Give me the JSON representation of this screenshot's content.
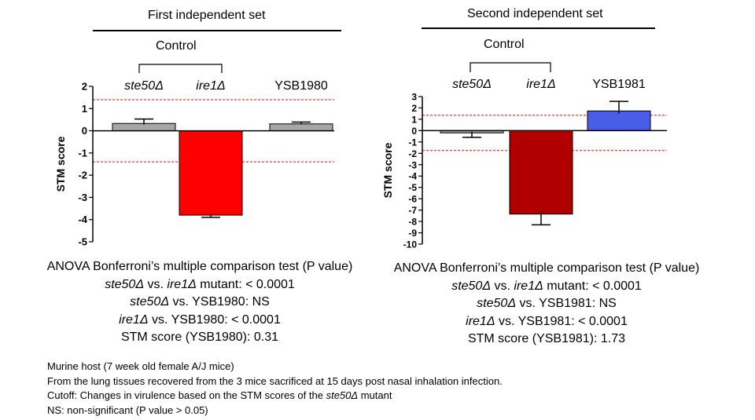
{
  "panels": [
    {
      "heading": "First independent set",
      "control_label": "Control",
      "stats": {
        "title": "ANOVA Bonferroni’s multiple comparison test (P value)",
        "line1_a": "ste50Δ",
        "line1_b": " vs. ",
        "line1_c": "ire1Δ",
        "line1_d": " mutant: < 0.0001",
        "line2_a": "ste50Δ",
        "line2_b": " vs. YSB1980: NS",
        "line3_a": "ire1Δ",
        "line3_b": " vs. YSB1980: < 0.0001",
        "line4": "STM score (YSB1980): 0.31"
      }
    },
    {
      "heading": "Second independent set",
      "control_label": "Control",
      "stats": {
        "title": "ANOVA Bonferroni’s multiple comparison test (P value)",
        "line1_a": "ste50Δ",
        "line1_b": " vs. ",
        "line1_c": "ire1Δ",
        "line1_d": " mutant: < 0.0001",
        "line2_a": "ste50Δ",
        "line2_b": " vs. YSB1981: NS",
        "line3_a": "ire1Δ",
        "line3_b": " vs. YSB1981: < 0.0001",
        "line4": "STM score (YSB1981): 1.73"
      }
    }
  ],
  "chart_data": [
    {
      "type": "bar",
      "categories": [
        "ste50Δ",
        "ire1Δ",
        "YSB1980"
      ],
      "category_italic": [
        true,
        true,
        false
      ],
      "values": [
        0.33,
        -3.8,
        0.31
      ],
      "errors": [
        0.2,
        0.1,
        0.08
      ],
      "colors": [
        "#a6a6a6",
        "#ff0000",
        "#a6a6a6"
      ],
      "ylabel": "STM score",
      "ylim": [
        -5,
        2
      ],
      "yticks": [
        2,
        1,
        0,
        -1,
        -2,
        -3,
        -4,
        -5
      ],
      "cutoff_lines": [
        1.4,
        -1.4
      ],
      "cutoff_color": "#ff0000",
      "grid": false
    },
    {
      "type": "bar",
      "categories": [
        "ste50Δ",
        "ire1Δ",
        "YSB1981"
      ],
      "category_italic": [
        true,
        true,
        false
      ],
      "values": [
        -0.2,
        -7.35,
        1.73
      ],
      "errors": [
        0.4,
        0.95,
        0.85
      ],
      "colors": [
        "#a6a6a6",
        "#b00000",
        "#4a5de6"
      ],
      "ylabel": "STM score",
      "ylim": [
        -10,
        3
      ],
      "yticks": [
        3,
        2,
        1,
        0,
        -1,
        -2,
        -3,
        -4,
        -5,
        -6,
        -7,
        -8,
        -9,
        -10
      ],
      "cutoff_lines": [
        1.35,
        -1.75
      ],
      "cutoff_color": "#ff0000",
      "grid": false
    }
  ],
  "footnotes": {
    "line1": "Murine host (7 week old female A/J mice)",
    "line2": "From  the lung tissues recovered from the 3 mice sacrificed at 15 days post nasal inhalation infection.",
    "line3_a": "Cutoff: Changes in virulence based on the STM scores of the ",
    "line3_b": "ste50Δ",
    "line3_c": " mutant",
    "line4": "NS: non-significant (P value > 0.05)"
  }
}
